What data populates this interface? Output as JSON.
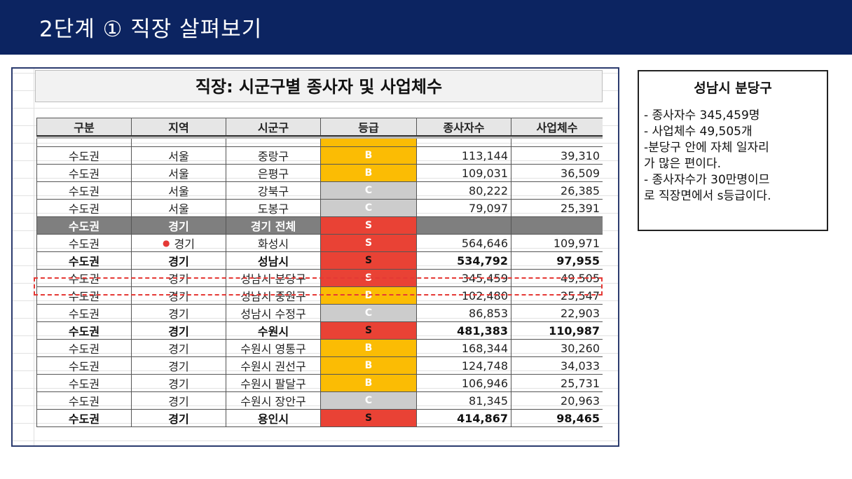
{
  "slide": {
    "title": "2단계 ① 직장 살펴보기"
  },
  "sheet": {
    "title": "직장: 시군구별 종사자 및 사업체수",
    "columns": [
      "구분",
      "지역",
      "시군구",
      "등급",
      "종사자수",
      "사업체수"
    ],
    "rows": [
      {
        "region_group": "수도권",
        "region": "서울",
        "district": "중랑구",
        "grade": "B",
        "workers": "113,144",
        "businesses": "39,310",
        "style": "normal"
      },
      {
        "region_group": "수도권",
        "region": "서울",
        "district": "은평구",
        "grade": "B",
        "workers": "109,031",
        "businesses": "36,509",
        "style": "normal"
      },
      {
        "region_group": "수도권",
        "region": "서울",
        "district": "강북구",
        "grade": "C",
        "workers": "80,222",
        "businesses": "26,385",
        "style": "normal"
      },
      {
        "region_group": "수도권",
        "region": "서울",
        "district": "도봉구",
        "grade": "C",
        "workers": "79,097",
        "businesses": "25,391",
        "style": "normal"
      },
      {
        "region_group": "수도권",
        "region": "경기",
        "district": "경기 전체",
        "grade": "S",
        "workers": "",
        "businesses": "",
        "style": "section"
      },
      {
        "region_group": "수도권",
        "region": "경기",
        "district": "화성시",
        "grade": "S",
        "workers": "564,646",
        "businesses": "109,971",
        "style": "normal"
      },
      {
        "region_group": "수도권",
        "region": "경기",
        "district": "성남시",
        "grade": "S",
        "workers": "534,792",
        "businesses": "97,955",
        "style": "bold"
      },
      {
        "region_group": "수도권",
        "region": "경기",
        "district": "성남시 분당구",
        "grade": "S",
        "workers": "345,459",
        "businesses": "49,505",
        "style": "normal"
      },
      {
        "region_group": "수도권",
        "region": "경기",
        "district": "성남시 중원구",
        "grade": "B",
        "workers": "102,480",
        "businesses": "25,547",
        "style": "normal"
      },
      {
        "region_group": "수도권",
        "region": "경기",
        "district": "성남시 수정구",
        "grade": "C",
        "workers": "86,853",
        "businesses": "22,903",
        "style": "normal"
      },
      {
        "region_group": "수도권",
        "region": "경기",
        "district": "수원시",
        "grade": "S",
        "workers": "481,383",
        "businesses": "110,987",
        "style": "bold"
      },
      {
        "region_group": "수도권",
        "region": "경기",
        "district": "수원시 영통구",
        "grade": "B",
        "workers": "168,344",
        "businesses": "30,260",
        "style": "normal"
      },
      {
        "region_group": "수도권",
        "region": "경기",
        "district": "수원시 권선구",
        "grade": "B",
        "workers": "124,748",
        "businesses": "34,033",
        "style": "normal"
      },
      {
        "region_group": "수도권",
        "region": "경기",
        "district": "수원시 팔달구",
        "grade": "B",
        "workers": "106,946",
        "businesses": "25,731",
        "style": "normal"
      },
      {
        "region_group": "수도권",
        "region": "경기",
        "district": "수원시 장안구",
        "grade": "C",
        "workers": "81,345",
        "businesses": "20,963",
        "style": "normal"
      },
      {
        "region_group": "수도권",
        "region": "경기",
        "district": "용인시",
        "grade": "S",
        "workers": "414,867",
        "businesses": "98,465",
        "style": "bold"
      }
    ],
    "grade_colors": {
      "S": "#e94235",
      "B": "#fbbc04",
      "C": "#cccccc"
    },
    "highlighted_district": "성남시 분당구"
  },
  "info": {
    "title": "성남시 분당구",
    "lines": [
      "- 종사자수 345,459명",
      "- 사업체수 49,505개",
      "-분당구 안에 자체 일자리",
      "가 많은 편이다.",
      "- 종사자수가 30만명이므",
      "로 직장면에서 s등급이다."
    ]
  }
}
